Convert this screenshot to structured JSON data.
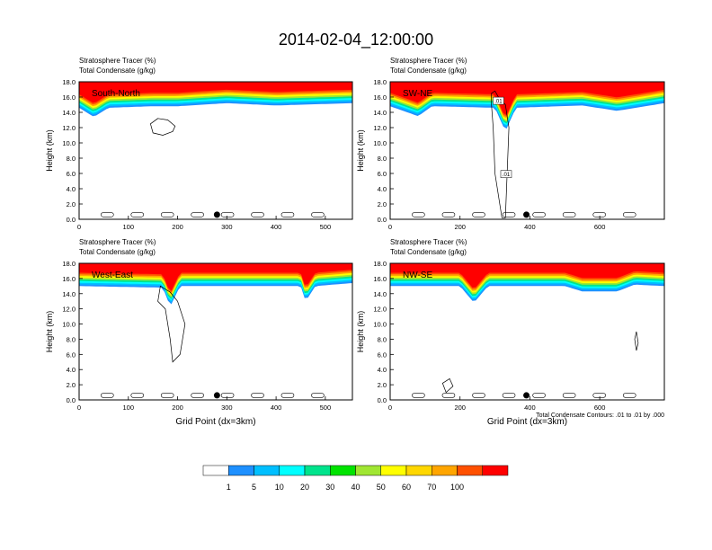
{
  "page_title": "2014-02-04_12:00:00",
  "caption": "Total Condensate Contours: .01 to .01 by .000",
  "colorbar": {
    "labels": [
      "1",
      "5",
      "10",
      "20",
      "30",
      "40",
      "50",
      "60",
      "70",
      "100"
    ],
    "colors": [
      "#ffffff",
      "#1e90ff",
      "#00bfff",
      "#00ffff",
      "#00e38c",
      "#00e300",
      "#a0e632",
      "#ffff00",
      "#ffd700",
      "#ffa500",
      "#ff5000",
      "#ff0000"
    ]
  },
  "chart_data": [
    {
      "type": "heatmap",
      "title": "South-North",
      "subtitle_lines": [
        "Stratosphere Tracer   (%)",
        "Total Condensate   (g/kg)"
      ],
      "ylabel": "Height (km)",
      "xlabel": "",
      "ylim": [
        0,
        18
      ],
      "xlim": [
        0,
        555
      ],
      "xticks": [
        "0",
        "100",
        "200",
        "300",
        "400",
        "500"
      ],
      "yticks": [
        "0.0",
        "2.0",
        "4.0",
        "6.0",
        "8.0",
        "10.0",
        "12.0",
        "14.0",
        "16.0",
        "18.0"
      ],
      "tracer_base_km": [
        [
          0,
          14.6
        ],
        [
          30,
          13.4
        ],
        [
          60,
          14.6
        ],
        [
          150,
          14.8
        ],
        [
          200,
          14.8
        ],
        [
          300,
          15.2
        ],
        [
          400,
          14.9
        ],
        [
          450,
          15.0
        ],
        [
          555,
          15.2
        ]
      ],
      "contour_labels": [],
      "marker_x": 280
    },
    {
      "type": "heatmap",
      "title": "SW-NE",
      "subtitle_lines": [
        "Stratosphere Tracer   (%)",
        "Total Condensate   (g/kg)"
      ],
      "ylabel": "Height (km)",
      "xlabel": "",
      "ylim": [
        0,
        18
      ],
      "xlim": [
        0,
        785
      ],
      "xticks": [
        "0",
        "200",
        "400",
        "600"
      ],
      "yticks": [
        "0.0",
        "2.0",
        "4.0",
        "6.0",
        "8.0",
        "10.0",
        "12.0",
        "14.0",
        "16.0",
        "18.0"
      ],
      "tracer_base_km": [
        [
          0,
          14.8
        ],
        [
          80,
          13.5
        ],
        [
          120,
          14.8
        ],
        [
          300,
          14.6
        ],
        [
          330,
          11.5
        ],
        [
          360,
          14.6
        ],
        [
          550,
          14.9
        ],
        [
          650,
          14.2
        ],
        [
          785,
          15.2
        ]
      ],
      "contour_labels": [
        ".01",
        ".01"
      ],
      "marker_x": 390
    },
    {
      "type": "heatmap",
      "title": "West-East",
      "subtitle_lines": [
        "Stratosphere Tracer   (%)",
        "Total Condensate   (g/kg)"
      ],
      "ylabel": "Height (km)",
      "xlabel": "Grid Point (dx=3km)",
      "ylim": [
        0,
        18
      ],
      "xlim": [
        0,
        555
      ],
      "xticks": [
        "0",
        "100",
        "200",
        "300",
        "400",
        "500"
      ],
      "yticks": [
        "0.0",
        "2.0",
        "4.0",
        "6.0",
        "8.0",
        "10.0",
        "12.0",
        "14.0",
        "16.0",
        "18.0"
      ],
      "tracer_base_km": [
        [
          0,
          15.0
        ],
        [
          170,
          14.8
        ],
        [
          185,
          12.3
        ],
        [
          205,
          15.0
        ],
        [
          450,
          15.0
        ],
        [
          460,
          13.0
        ],
        [
          480,
          15.0
        ],
        [
          555,
          15.4
        ]
      ],
      "contour_labels": [],
      "marker_x": 280
    },
    {
      "type": "heatmap",
      "title": "NW-SE",
      "subtitle_lines": [
        "Stratosphere Tracer   (%)",
        "Total Condensate   (g/kg)"
      ],
      "ylabel": "Height (km)",
      "xlabel": "Grid Point (dx=3km)",
      "ylim": [
        0,
        18
      ],
      "xlim": [
        0,
        785
      ],
      "xticks": [
        "0",
        "200",
        "400",
        "600"
      ],
      "yticks": [
        "0.0",
        "2.0",
        "4.0",
        "6.0",
        "8.0",
        "10.0",
        "12.0",
        "14.0",
        "16.0",
        "18.0"
      ],
      "tracer_base_km": [
        [
          0,
          15.0
        ],
        [
          200,
          15.0
        ],
        [
          240,
          12.8
        ],
        [
          280,
          15.0
        ],
        [
          500,
          15.0
        ],
        [
          550,
          14.3
        ],
        [
          650,
          14.3
        ],
        [
          700,
          15.2
        ],
        [
          785,
          15.0
        ]
      ],
      "contour_labels": [],
      "marker_x": 390
    }
  ]
}
